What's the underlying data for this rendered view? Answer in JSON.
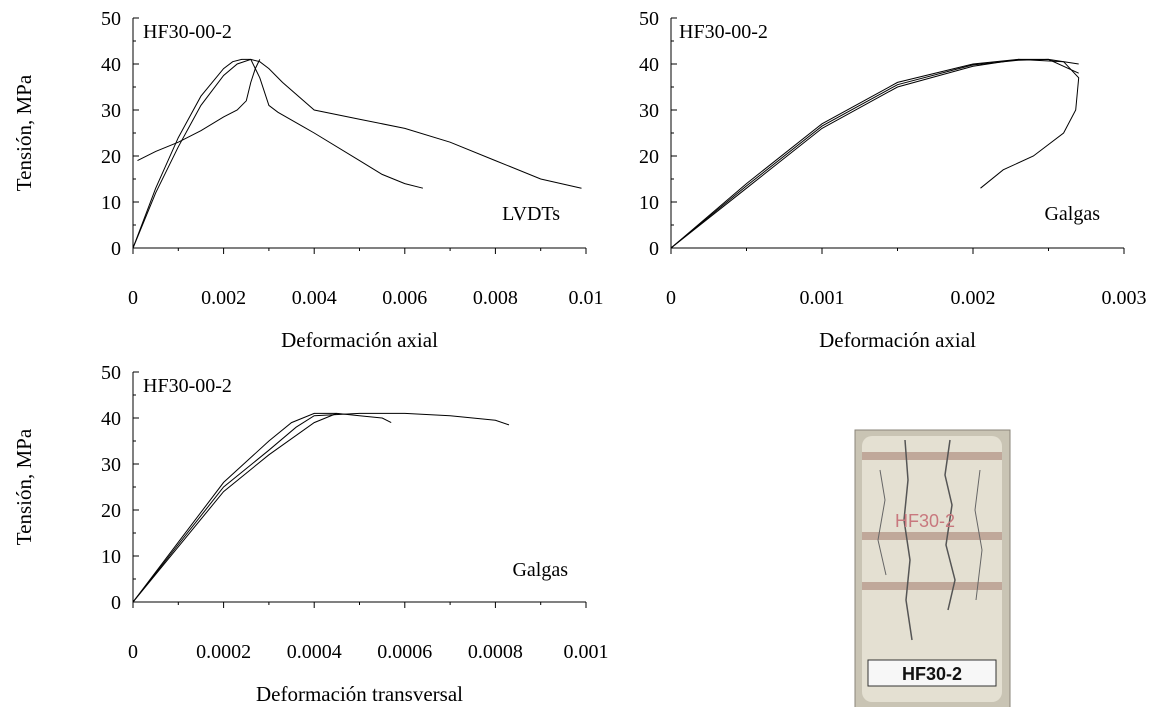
{
  "chart_data": [
    {
      "type": "line",
      "panel_label": "HF30-00-2",
      "annotation": "LVDTs",
      "xlabel": "Deformación axial",
      "ylabel": "Tensión, MPa",
      "xlim": [
        0,
        0.01
      ],
      "ylim": [
        0,
        50
      ],
      "xticks": [
        0,
        0.002,
        0.004,
        0.006,
        0.008,
        0.01
      ],
      "xtick_labels": [
        "0",
        "0.002",
        "0.004",
        "0.006",
        "0.008",
        "0.01"
      ],
      "yticks": [
        0,
        10,
        20,
        30,
        40,
        50
      ],
      "ytick_labels": [
        "0",
        "10",
        "20",
        "30",
        "40",
        "50"
      ],
      "series": [
        {
          "x": [
            0,
            0.0005,
            0.001,
            0.0015,
            0.002,
            0.0022,
            0.0024,
            0.0026,
            0.0028,
            0.003,
            0.0032,
            0.004,
            0.005,
            0.0055,
            0.006,
            0.0064
          ],
          "y": [
            0,
            13,
            24,
            33,
            39,
            40.5,
            41,
            41,
            37,
            31,
            29.5,
            25,
            19,
            16,
            14,
            13
          ]
        },
        {
          "x": [
            0,
            0.0005,
            0.001,
            0.0015,
            0.002,
            0.0023,
            0.0026,
            0.0028,
            0.003,
            0.0033,
            0.004,
            0.005,
            0.006,
            0.007,
            0.008,
            0.009,
            0.0099
          ],
          "y": [
            0,
            12,
            22,
            31,
            37.5,
            40,
            41,
            40.5,
            39,
            36,
            30,
            28,
            26,
            23,
            19,
            15,
            13
          ]
        },
        {
          "x": [
            0.0001,
            0.0005,
            0.001,
            0.0015,
            0.002,
            0.0023,
            0.0025,
            0.0026,
            0.0027,
            0.0028
          ],
          "y": [
            19,
            21,
            23,
            25.5,
            28.5,
            30,
            32,
            36,
            39,
            41
          ]
        }
      ]
    },
    {
      "type": "line",
      "panel_label": "HF30-00-2",
      "annotation": "Galgas",
      "xlabel": "Deformación axial",
      "ylabel": "",
      "xlim": [
        0,
        0.003
      ],
      "ylim": [
        0,
        50
      ],
      "xticks": [
        0,
        0.001,
        0.002,
        0.003
      ],
      "xtick_labels": [
        "0",
        "0.001",
        "0.002",
        "0.003"
      ],
      "yticks": [
        0,
        10,
        20,
        30,
        40,
        50
      ],
      "ytick_labels": [
        "0",
        "10",
        "20",
        "30",
        "40",
        "50"
      ],
      "series": [
        {
          "x": [
            0,
            0.0005,
            0.001,
            0.0015,
            0.002,
            0.0023,
            0.0025,
            0.0027
          ],
          "y": [
            0,
            14,
            27,
            36,
            40,
            41,
            41,
            40
          ]
        },
        {
          "x": [
            0,
            0.0005,
            0.001,
            0.0015,
            0.002,
            0.0023,
            0.0026,
            0.0027,
            0.00268,
            0.0026,
            0.0024,
            0.0022,
            0.00205
          ],
          "y": [
            0,
            13,
            26,
            35,
            39.5,
            41,
            40.5,
            37,
            30,
            25,
            20,
            17,
            13
          ]
        },
        {
          "x": [
            0,
            0.0005,
            0.001,
            0.0015,
            0.002,
            0.0023,
            0.0025,
            0.0027
          ],
          "y": [
            0,
            13.5,
            26.5,
            35.5,
            39.8,
            40.8,
            41,
            38
          ]
        }
      ]
    },
    {
      "type": "line",
      "panel_label": "HF30-00-2",
      "annotation": "Galgas",
      "xlabel": "Deformación transversal",
      "ylabel": "Tensión, MPa",
      "xlim": [
        0,
        0.001
      ],
      "ylim": [
        0,
        50
      ],
      "xticks": [
        0,
        0.0002,
        0.0004,
        0.0006,
        0.0008,
        0.001
      ],
      "xtick_labels": [
        "0",
        "0.0002",
        "0.0004",
        "0.0006",
        "0.0008",
        "0.001"
      ],
      "yticks": [
        0,
        10,
        20,
        30,
        40,
        50
      ],
      "ytick_labels": [
        "0",
        "10",
        "20",
        "30",
        "40",
        "50"
      ],
      "series": [
        {
          "x": [
            0,
            0.0001,
            0.0002,
            0.0003,
            0.00035,
            0.0004,
            0.00045,
            0.0005,
            0.00055,
            0.00057
          ],
          "y": [
            0,
            13,
            26,
            35,
            39,
            41,
            41,
            40.5,
            40,
            39
          ]
        },
        {
          "x": [
            0,
            0.0001,
            0.0002,
            0.0003,
            0.00036,
            0.0004,
            0.0005,
            0.0006,
            0.0007,
            0.0008,
            0.00083
          ],
          "y": [
            0,
            12.5,
            25,
            33,
            38,
            40.5,
            41,
            41,
            40.5,
            39.5,
            38.5
          ]
        },
        {
          "x": [
            0,
            0.0001,
            0.0002,
            0.0003,
            0.0004,
            0.00045
          ],
          "y": [
            0,
            12,
            24,
            32,
            39,
            41
          ]
        }
      ]
    }
  ],
  "photo": {
    "label": "HF30-2",
    "marking": "HF30-2"
  }
}
